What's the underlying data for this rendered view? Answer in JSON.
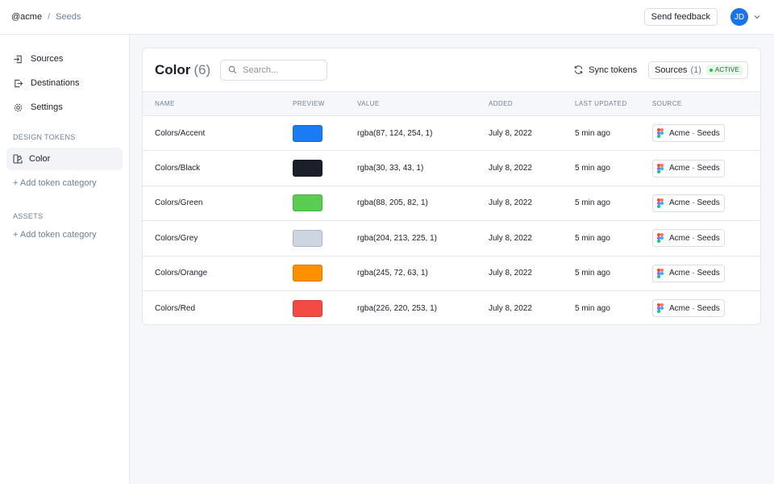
{
  "breadcrumb": {
    "org": "@acme",
    "separator": "/",
    "page": "Seeds"
  },
  "header": {
    "feedback_label": "Send feedback",
    "avatar_initials": "JD"
  },
  "sidebar": {
    "nav": [
      {
        "label": "Sources",
        "icon": "arrow-in-icon"
      },
      {
        "label": "Destinations",
        "icon": "arrow-out-icon"
      },
      {
        "label": "Settings",
        "icon": "gear-icon"
      }
    ],
    "design_tokens_label": "DESIGN TOKENS",
    "active_item": "Color",
    "add_category_label": "+ Add token category",
    "assets_label": "ASSETS",
    "assets_add_label": "+ Add token category"
  },
  "main": {
    "title": "Color",
    "count": "(6)",
    "search_placeholder": "Search...",
    "sync_label": "Sync tokens",
    "sources_label": "Sources",
    "sources_count": "(1)",
    "active_badge": "ACTIVE",
    "columns": [
      "NAME",
      "PREVIEW",
      "VALUE",
      "ADDED",
      "LAST UPDATED",
      "SOURCE"
    ],
    "rows": [
      {
        "name": "Colors/Accent",
        "color": "#1a7bf2",
        "value": "rgba(87, 124, 254, 1)",
        "added": "July 8, 2022",
        "updated": "5 min ago",
        "source": "Acme · Seeds"
      },
      {
        "name": "Colors/Black",
        "color": "#1b1f2a",
        "value": "rgba(30, 33, 43, 1)",
        "added": "July 8, 2022",
        "updated": "5 min ago",
        "source": "Acme · Seeds"
      },
      {
        "name": "Colors/Green",
        "color": "#58cd52",
        "value": "rgba(88, 205, 82, 1)",
        "added": "July 8, 2022",
        "updated": "5 min ago",
        "source": "Acme · Seeds"
      },
      {
        "name": "Colors/Grey",
        "color": "#ccd5e1",
        "value": "rgba(204, 213, 225, 1)",
        "added": "July 8, 2022",
        "updated": "5 min ago",
        "source": "Acme · Seeds"
      },
      {
        "name": "Colors/Orange",
        "color": "#ff9000",
        "value": "rgba(245, 72, 63, 1)",
        "added": "July 8, 2022",
        "updated": "5 min ago",
        "source": "Acme · Seeds"
      },
      {
        "name": "Colors/Red",
        "color": "#f44a44",
        "value": "rgba(226, 220, 253, 1)",
        "added": "July 8, 2022",
        "updated": "5 min ago",
        "source": "Acme · Seeds"
      }
    ]
  }
}
